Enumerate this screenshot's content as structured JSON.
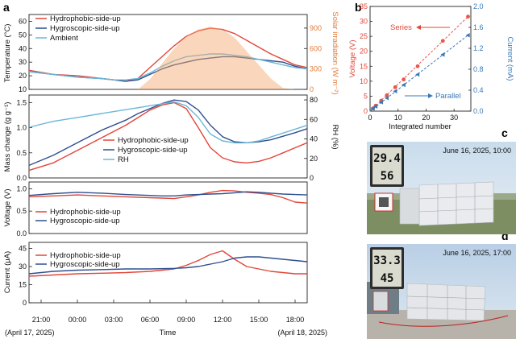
{
  "panel_labels": {
    "a": "a",
    "b": "b",
    "c": "c",
    "d": "d"
  },
  "colors": {
    "hydrophobic": "#e2463a",
    "hygroscopic": "#2f4f8f",
    "ambient": "#6bb7d6",
    "solar": "#f4a66a",
    "series": "#e8574c",
    "parallel": "#3a78b5"
  },
  "axes_a": {
    "time_ticks": [
      "21:00",
      "00:00",
      "03:00",
      "06:00",
      "09:00",
      "12:00",
      "15:00",
      "18:00"
    ],
    "xlabel": "Time",
    "start_date": "(April 17, 2025)",
    "end_date": "(April 18, 2025)"
  },
  "chart_data": [
    {
      "id": "temperature",
      "type": "line",
      "ylabel": "Temperature (°C)",
      "y_ticks": [
        "10",
        "20",
        "30",
        "40",
        "50",
        "60"
      ],
      "ylim": [
        10,
        65
      ],
      "y2label": "Solar irradiation (W m⁻²)",
      "y2_ticks": [
        "0",
        "300",
        "600",
        "900"
      ],
      "y2lim": [
        0,
        1100
      ],
      "legend": [
        "Hydrophobic-side-up",
        "Hygroscopic-side-up",
        "Ambient"
      ],
      "x_hours": [
        0,
        2,
        4,
        6,
        7,
        8,
        9,
        10,
        11,
        12,
        13,
        14,
        15,
        16,
        17,
        18,
        19,
        20,
        21,
        22,
        23
      ],
      "series": [
        {
          "name": "Hydrophobic-side-up",
          "values": [
            24,
            21,
            20,
            18,
            17,
            16,
            18,
            26,
            34,
            42,
            49,
            53,
            55,
            54,
            51,
            46,
            41,
            36,
            32,
            28,
            26
          ]
        },
        {
          "name": "Hygroscopic-side-up",
          "values": [
            23,
            21,
            19,
            18,
            17,
            16,
            17,
            21,
            25,
            28,
            30,
            32,
            33,
            34,
            34,
            33,
            32,
            31,
            30,
            27,
            25
          ]
        },
        {
          "name": "Ambient",
          "values": [
            23,
            21,
            19,
            18,
            17,
            17,
            18,
            22,
            27,
            31,
            34,
            35,
            36,
            36,
            35,
            34,
            32,
            30,
            28,
            26,
            25
          ]
        },
        {
          "name": "Solar irradiation",
          "axis": "y2",
          "values": [
            0,
            0,
            0,
            0,
            0,
            0,
            0,
            150,
            380,
            600,
            780,
            880,
            920,
            880,
            760,
            560,
            360,
            160,
            20,
            0,
            0
          ]
        }
      ]
    },
    {
      "id": "mass_change",
      "type": "line",
      "ylabel": "Mass change (g g⁻¹)",
      "y_ticks": [
        "0.0",
        "0.5",
        "1.0",
        "1.5"
      ],
      "ylim": [
        0,
        1.65
      ],
      "y2label": "RH (%)",
      "y2_ticks": [
        "0",
        "20",
        "40",
        "60",
        "80"
      ],
      "y2lim": [
        0,
        85
      ],
      "legend": [
        "Hydrophobic-side-up",
        "Hygroscopic-side-up",
        "RH"
      ],
      "x_hours": [
        0,
        2,
        4,
        6,
        8,
        9,
        10,
        11,
        12,
        13,
        14,
        15,
        16,
        17,
        18,
        19,
        20,
        21,
        22,
        23
      ],
      "series": [
        {
          "name": "Hydrophobic-side-up",
          "values": [
            0.15,
            0.3,
            0.55,
            0.8,
            1.05,
            1.2,
            1.35,
            1.45,
            1.5,
            1.38,
            1.0,
            0.6,
            0.4,
            0.32,
            0.3,
            0.33,
            0.4,
            0.5,
            0.6,
            0.7
          ]
        },
        {
          "name": "Hygroscopic-side-up",
          "values": [
            0.25,
            0.45,
            0.7,
            0.95,
            1.15,
            1.28,
            1.38,
            1.48,
            1.55,
            1.52,
            1.35,
            1.05,
            0.82,
            0.72,
            0.7,
            0.72,
            0.76,
            0.83,
            0.9,
            0.98
          ]
        },
        {
          "name": "RH",
          "axis": "y2",
          "values": [
            52,
            58,
            62,
            66,
            70,
            72,
            74,
            76,
            78,
            74,
            62,
            45,
            38,
            36,
            36,
            38,
            42,
            46,
            50,
            54
          ]
        }
      ]
    },
    {
      "id": "voltage",
      "type": "line",
      "ylabel": "Voltage (V)",
      "y_ticks": [
        "0.0",
        "0.5",
        "1.0"
      ],
      "ylim": [
        0,
        1.15
      ],
      "legend": [
        "Hydrophobic-side-up",
        "Hygroscopic-side-up"
      ],
      "x_hours": [
        0,
        2,
        4,
        6,
        8,
        10,
        11,
        12,
        13,
        14,
        15,
        16,
        17,
        18,
        19,
        20,
        21,
        22,
        23
      ],
      "series": [
        {
          "name": "Hydrophobic-side-up",
          "values": [
            0.82,
            0.84,
            0.86,
            0.84,
            0.82,
            0.8,
            0.79,
            0.78,
            0.82,
            0.86,
            0.92,
            0.96,
            0.95,
            0.92,
            0.9,
            0.87,
            0.8,
            0.7,
            0.68
          ]
        },
        {
          "name": "Hygroscopic-side-up",
          "values": [
            0.85,
            0.89,
            0.92,
            0.9,
            0.87,
            0.85,
            0.84,
            0.84,
            0.86,
            0.87,
            0.88,
            0.89,
            0.91,
            0.93,
            0.92,
            0.9,
            0.88,
            0.87,
            0.86
          ]
        }
      ]
    },
    {
      "id": "current",
      "type": "line",
      "ylabel": "Current (μA)",
      "y_ticks": [
        "0",
        "15",
        "30",
        "45"
      ],
      "ylim": [
        0,
        50
      ],
      "legend": [
        "Hydrophobic-side-up",
        "Hygroscopic-side-up"
      ],
      "x_hours": [
        0,
        2,
        4,
        6,
        8,
        10,
        12,
        13,
        14,
        15,
        16,
        17,
        18,
        19,
        20,
        21,
        22,
        23
      ],
      "series": [
        {
          "name": "Hydrophobic-side-up",
          "values": [
            22,
            23,
            24,
            24.5,
            25,
            26,
            28,
            31,
            35,
            40,
            43,
            36,
            30,
            28,
            26,
            25,
            24,
            24
          ]
        },
        {
          "name": "Hygroscopic-side-up",
          "values": [
            24,
            26,
            27,
            27.5,
            28,
            28,
            28.5,
            29,
            30,
            32,
            34,
            37,
            38,
            38,
            37,
            36,
            35,
            34
          ]
        }
      ]
    },
    {
      "id": "integrated",
      "type": "scatter",
      "xlabel": "Integrated number",
      "x_ticks": [
        "0",
        "10",
        "20",
        "30"
      ],
      "xlim": [
        0,
        36
      ],
      "ylabel": "Voltage (V)",
      "y_ticks": [
        "0",
        "5",
        "10",
        "15",
        "20",
        "25",
        "30",
        "35"
      ],
      "ylim": [
        0,
        35
      ],
      "y2label": "Current (mA)",
      "y2_ticks": [
        "0.0",
        "0.4",
        "0.8",
        "1.2",
        "1.6",
        "2.0"
      ],
      "y2lim": [
        0,
        2.0
      ],
      "series": [
        {
          "name": "Series",
          "x": [
            1,
            2,
            4,
            6,
            9,
            12,
            17,
            26,
            35
          ],
          "values": [
            0.9,
            1.8,
            3.5,
            5.3,
            8.0,
            10.6,
            15.0,
            23.5,
            31.6
          ]
        },
        {
          "name": "Parallel",
          "axis": "y2",
          "x": [
            1,
            2,
            4,
            6,
            9,
            12,
            17,
            26,
            35
          ],
          "values": [
            0.05,
            0.09,
            0.17,
            0.25,
            0.38,
            0.5,
            0.7,
            1.08,
            1.45
          ]
        }
      ]
    }
  ],
  "photos": {
    "c": {
      "caption": "June 16, 2025, 10:00",
      "lcd_temp": "29.4",
      "lcd_rh": "56"
    },
    "d": {
      "caption": "June 16, 2025, 17:00",
      "lcd_temp": "33.3",
      "lcd_rh": "45"
    }
  }
}
